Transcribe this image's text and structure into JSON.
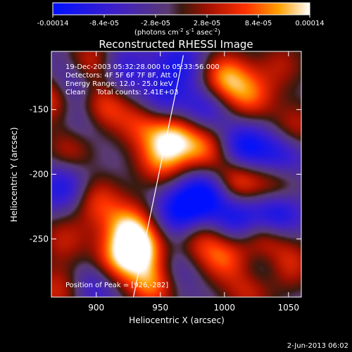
{
  "chart_data": {
    "type": "heatmap",
    "title": "Reconstructed RHESSI Image",
    "xlabel": "Heliocentric X (arcsec)",
    "ylabel": "Heliocentric Y (arcsec)",
    "xlim": [
      865,
      1060
    ],
    "ylim": [
      -295,
      -105
    ],
    "x_ticks": [
      900,
      950,
      1000,
      1050
    ],
    "y_ticks": [
      -150,
      -200,
      -250
    ],
    "colorbar": {
      "label_prefix": "(photons cm",
      "label_sup1": "-2",
      "label_mid1": " s",
      "label_sup2": "-1",
      "label_mid2": " asec",
      "label_sup3": "-2",
      "label_suffix": ")",
      "range": [
        -0.00014,
        0.00014
      ],
      "ticks": [
        {
          "value": -0.00014,
          "label": "-0.00014"
        },
        {
          "value": -8.4e-05,
          "label": "-8.4e-05"
        },
        {
          "value": -2.8e-05,
          "label": "-2.8e-05"
        },
        {
          "value": 2.8e-05,
          "label": "2.8e-05"
        },
        {
          "value": 8.4e-05,
          "label": "8.4e-05"
        },
        {
          "value": 0.00014,
          "label": "0.00014"
        }
      ]
    },
    "annotations": [
      "19-Dec-2003 05:32:28.000 to 05:33:56.000",
      "Detectors: 4F 5F 6F 7F 8F, Att 0",
      "Energy Range: 12.0 - 25.0 keV",
      "Clean     Total counts: 2.41E+03"
    ],
    "peak_label": "Position of Peak = [926,-282]",
    "limb_line": [
      [
        929,
        -295
      ],
      [
        968,
        -108
      ]
    ],
    "blobs": [
      {
        "x": 895,
        "y": -115,
        "v": 0.0001
      },
      {
        "x": 865,
        "y": -140,
        "v": 0.00012
      },
      {
        "x": 905,
        "y": -148,
        "v": 0.00011
      },
      {
        "x": 935,
        "y": -160,
        "v": 9e-05
      },
      {
        "x": 880,
        "y": -180,
        "v": 8e-05
      },
      {
        "x": 950,
        "y": -190,
        "v": 0.0001
      },
      {
        "x": 960,
        "y": -170,
        "v": 0.00013
      },
      {
        "x": 1000,
        "y": -125,
        "v": 0.00013
      },
      {
        "x": 1020,
        "y": -140,
        "v": 0.0001
      },
      {
        "x": 985,
        "y": -180,
        "v": 0.00011
      },
      {
        "x": 1010,
        "y": -205,
        "v": 0.00012
      },
      {
        "x": 1040,
        "y": -210,
        "v": 9e-05
      },
      {
        "x": 900,
        "y": -220,
        "v": 9e-05
      },
      {
        "x": 925,
        "y": -240,
        "v": 0.00012
      },
      {
        "x": 935,
        "y": -258,
        "v": 0.00014
      },
      {
        "x": 915,
        "y": -268,
        "v": 0.00011
      },
      {
        "x": 945,
        "y": -285,
        "v": 0.00013
      },
      {
        "x": 980,
        "y": -250,
        "v": 8e-05
      },
      {
        "x": 1000,
        "y": -265,
        "v": 0.0001
      },
      {
        "x": 1030,
        "y": -250,
        "v": 0.00011
      },
      {
        "x": 1050,
        "y": -270,
        "v": 9e-05
      },
      {
        "x": 1020,
        "y": -290,
        "v": 8e-05
      },
      {
        "x": 875,
        "y": -250,
        "v": 7e-05
      },
      {
        "x": 870,
        "y": -290,
        "v": 8e-05
      },
      {
        "x": 1055,
        "y": -165,
        "v": 8e-05
      },
      {
        "x": 1045,
        "y": -115,
        "v": 6e-05
      },
      {
        "x": 985,
        "y": -215,
        "v": -0.00012
      },
      {
        "x": 1010,
        "y": -235,
        "v": -0.0001
      },
      {
        "x": 1040,
        "y": -230,
        "v": -0.00013
      },
      {
        "x": 965,
        "y": -230,
        "v": -0.00011
      },
      {
        "x": 1015,
        "y": -180,
        "v": -0.00012
      },
      {
        "x": 1045,
        "y": -185,
        "v": -9e-05
      },
      {
        "x": 985,
        "y": -150,
        "v": -8e-05
      },
      {
        "x": 875,
        "y": -210,
        "v": -9e-05
      },
      {
        "x": 965,
        "y": -115,
        "v": -8e-05
      },
      {
        "x": 920,
        "y": -120,
        "v": -7e-05
      },
      {
        "x": 950,
        "y": -145,
        "v": -8e-05
      },
      {
        "x": 880,
        "y": -130,
        "v": -0.0001
      },
      {
        "x": 890,
        "y": -160,
        "v": -6e-05
      },
      {
        "x": 900,
        "y": -285,
        "v": -7e-05
      },
      {
        "x": 1030,
        "y": -270,
        "v": -7e-05
      },
      {
        "x": 960,
        "y": -275,
        "v": -6e-05
      }
    ]
  },
  "footer": {
    "timestamp": "2-Jun-2013 06:02"
  }
}
